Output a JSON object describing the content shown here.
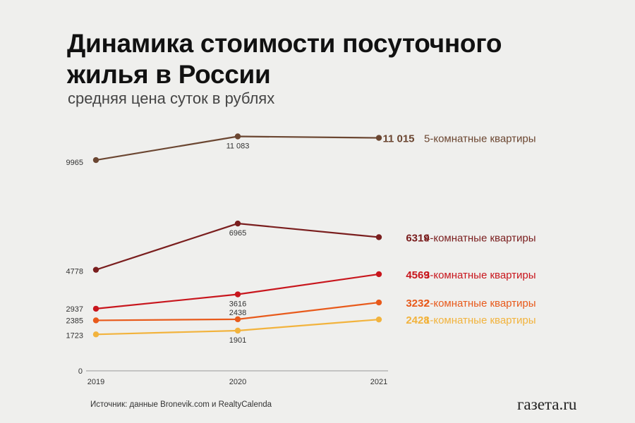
{
  "title": "Динамика стоимости посуточного жилья в России",
  "subtitle": "средняя цена суток в рублях",
  "source": "Источник: данные Bronevik.com и RealtyCalenda",
  "brand": "газета.ru",
  "chart_data": {
    "type": "line",
    "x": [
      "2019",
      "2020",
      "2021"
    ],
    "y_tick_labels": [
      "0"
    ],
    "ylim": [
      0,
      12000
    ],
    "series": [
      {
        "name": "5-комнатные квартиры",
        "values": [
          9965,
          11083,
          11015
        ],
        "labels": [
          "9965",
          "11 083",
          "11 015"
        ],
        "color": "#6b4631"
      },
      {
        "name": "4-комнатные квартиры",
        "values": [
          4778,
          6965,
          6319
        ],
        "labels": [
          "4778",
          "6965",
          "6319"
        ],
        "color": "#7a1e1e"
      },
      {
        "name": "3-комнатные квартиры",
        "values": [
          2937,
          3616,
          4569
        ],
        "labels": [
          "2937",
          "3616",
          "4569"
        ],
        "color": "#c8161d"
      },
      {
        "name": "2-комнатные квартиры",
        "values": [
          2385,
          2438,
          3232
        ],
        "labels": [
          "2385",
          "2438",
          "3232"
        ],
        "color": "#e85a1b"
      },
      {
        "name": "1-комнатные квартиры",
        "values": [
          1723,
          1901,
          2428
        ],
        "labels": [
          "1723",
          "1901",
          "2428"
        ],
        "color": "#f2b33d"
      }
    ]
  }
}
